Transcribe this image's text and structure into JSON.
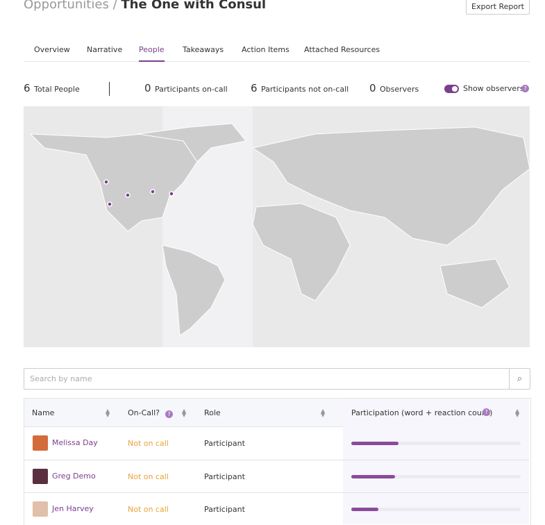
{
  "header": {
    "breadcrumb": "Opportunities",
    "separator": "/",
    "title": "The One with Consul",
    "export_button": "Export Report"
  },
  "tabs": [
    "Overview",
    "Narrative",
    "People",
    "Takeaways",
    "Action Items",
    "Attached Resources"
  ],
  "active_tab_index": 2,
  "stats": [
    {
      "count": 6,
      "label": "Total People"
    },
    {
      "count": 0,
      "label": "Participants on-call"
    },
    {
      "count": 6,
      "label": "Participants not on-call"
    },
    {
      "count": 0,
      "label": "Observers"
    }
  ],
  "toggle": {
    "label": "Show observers",
    "on": true
  },
  "search": {
    "placeholder": "Search by name"
  },
  "table": {
    "columns": [
      "Name",
      "On-Call?",
      "Role",
      "Participation (word + reaction count)"
    ],
    "rows": [
      {
        "name": "Melissa Day",
        "on_call": "Not on call",
        "role": "Participant",
        "participation": 0.28
      },
      {
        "name": "Greg Demo",
        "on_call": "Not on call",
        "role": "Participant",
        "participation": 0.26
      },
      {
        "name": "Jen Harvey",
        "on_call": "Not on call",
        "role": "Participant",
        "participation": 0.16
      }
    ]
  }
}
